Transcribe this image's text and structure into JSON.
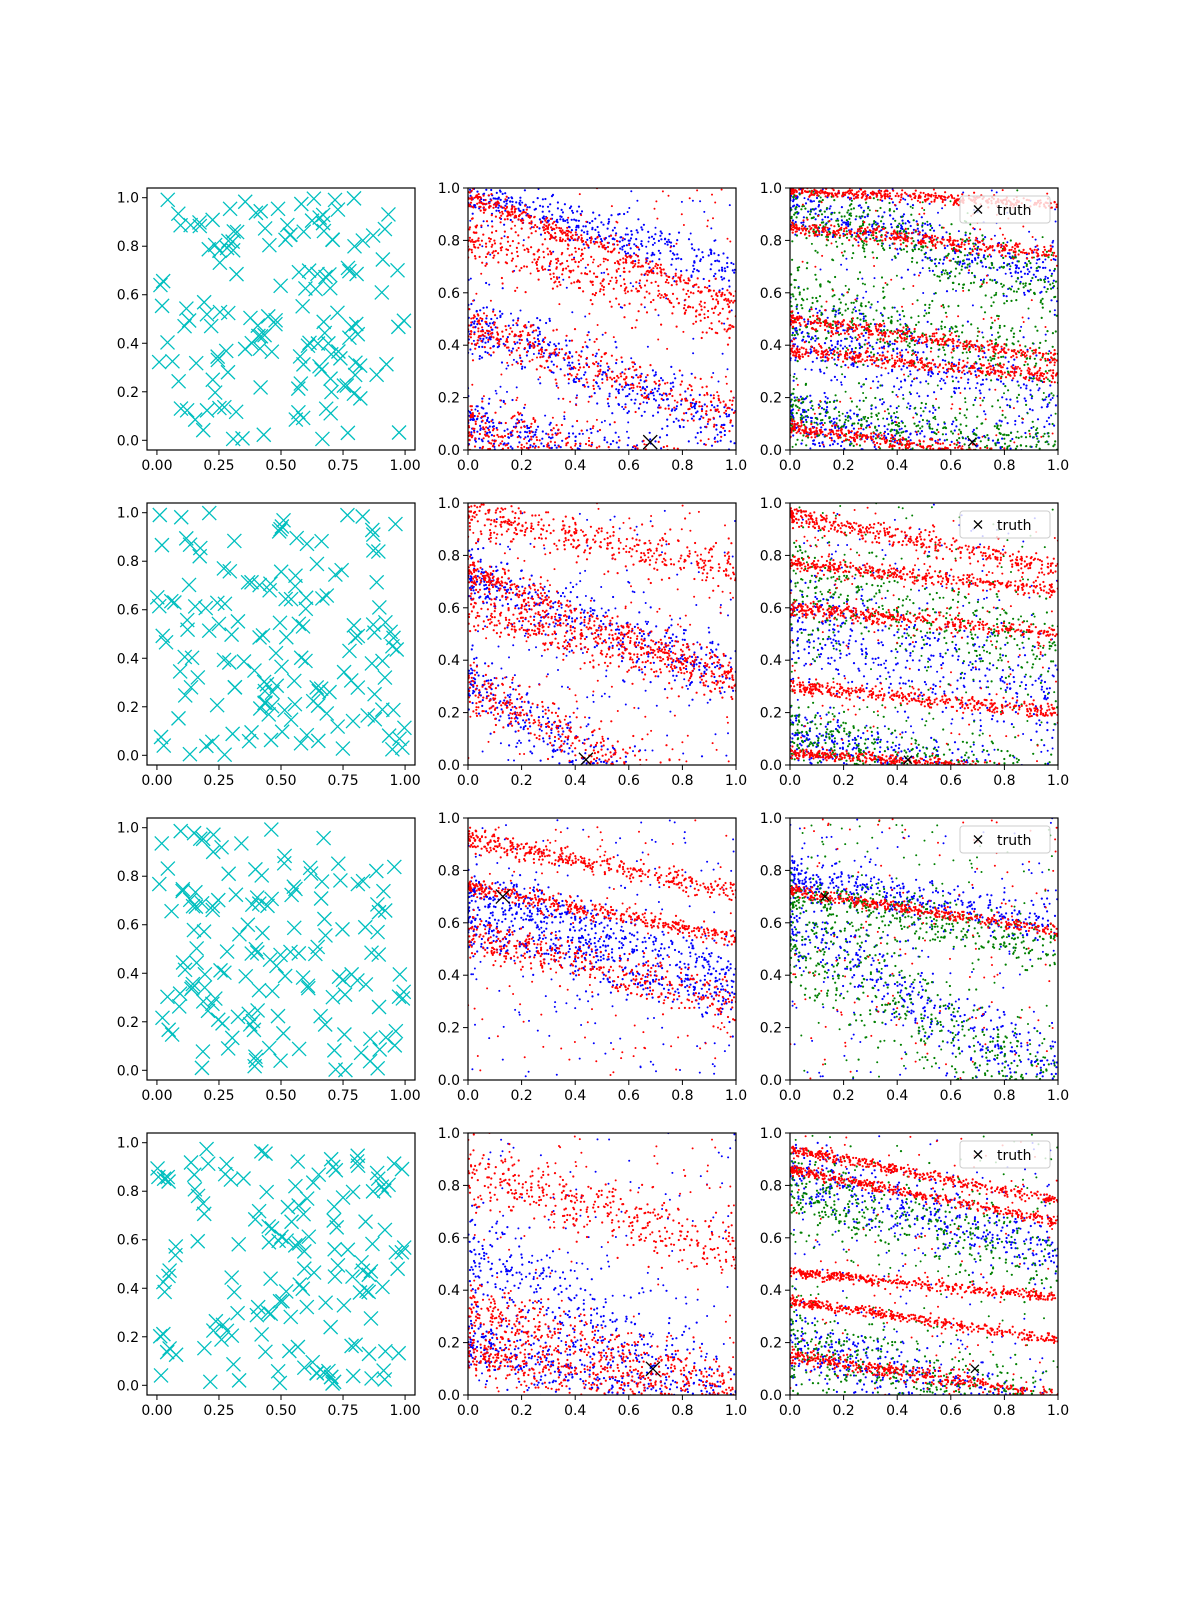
{
  "figure": {
    "legend_label": "truth",
    "colors": {
      "uniform_marker": "#00bfbf",
      "series_a": "#0000ff",
      "series_b": "#ff0000",
      "series_c": "#008000",
      "truth_marker": "#000000"
    }
  },
  "chart_data": [
    {
      "type": "scatter",
      "row": 1,
      "col": 1,
      "xlim": [
        -0.04,
        1.04
      ],
      "ylim": [
        -0.04,
        1.04
      ],
      "xticks": [
        "0.00",
        "0.25",
        "0.50",
        "0.75",
        "1.00"
      ],
      "yticks": [
        "0.0",
        "0.2",
        "0.4",
        "0.6",
        "0.8",
        "1.0"
      ],
      "series": [
        {
          "marker": "x",
          "color": "#00bfbf",
          "n_points": 150,
          "distribution": "uniform"
        }
      ]
    },
    {
      "type": "scatter",
      "row": 1,
      "col": 2,
      "xlim": [
        0,
        1
      ],
      "ylim": [
        0,
        1
      ],
      "xticks": [
        "0.0",
        "0.2",
        "0.4",
        "0.6",
        "0.8",
        "1.0"
      ],
      "yticks": [
        "0.0",
        "0.2",
        "0.4",
        "0.6",
        "0.8",
        "1.0"
      ],
      "truth": [
        0.68,
        0.03
      ],
      "series": [
        {
          "color": "#0000ff",
          "bands": [
            [
              0.1,
              -0.25,
              0.05
            ],
            [
              0.48,
              -0.4,
              0.06
            ],
            [
              0.98,
              -0.3,
              0.04
            ]
          ]
        },
        {
          "color": "#ff0000",
          "bands": [
            [
              0.08,
              -0.2,
              0.05
            ],
            [
              0.47,
              -0.35,
              0.05
            ],
            [
              0.97,
              -0.4,
              0.02
            ],
            [
              0.8,
              -0.3,
              0.05
            ]
          ]
        }
      ]
    },
    {
      "type": "scatter",
      "row": 1,
      "col": 3,
      "xlim": [
        0,
        1
      ],
      "ylim": [
        0,
        1
      ],
      "xticks": [
        "0.0",
        "0.2",
        "0.4",
        "0.6",
        "0.8",
        "1.0"
      ],
      "yticks": [
        "0.0",
        "0.2",
        "0.4",
        "0.6",
        "0.8",
        "1.0"
      ],
      "truth": [
        0.68,
        0.03
      ],
      "legend": true,
      "series": [
        {
          "color": "#0000ff",
          "bands": [
            [
              0.12,
              -0.2,
              0.06
            ],
            [
              0.45,
              -0.25,
              0.08
            ],
            [
              0.95,
              -0.3,
              0.06
            ]
          ]
        },
        {
          "color": "#008000",
          "bands": [
            [
              0.14,
              -0.15,
              0.06
            ],
            [
              0.55,
              -0.2,
              0.08
            ],
            [
              0.92,
              -0.3,
              0.06
            ]
          ]
        },
        {
          "color": "#ff0000",
          "bands": [
            [
              0.09,
              -0.15,
              0.015
            ],
            [
              0.38,
              -0.1,
              0.015
            ],
            [
              0.5,
              -0.15,
              0.015
            ],
            [
              0.85,
              -0.1,
              0.015
            ],
            [
              0.99,
              -0.05,
              0.01
            ]
          ]
        }
      ]
    },
    {
      "type": "scatter",
      "row": 2,
      "col": 1,
      "xlim": [
        -0.04,
        1.04
      ],
      "ylim": [
        -0.04,
        1.04
      ],
      "xticks": [
        "0.00",
        "0.25",
        "0.50",
        "0.75",
        "1.00"
      ],
      "yticks": [
        "0.0",
        "0.2",
        "0.4",
        "0.6",
        "0.8",
        "1.0"
      ],
      "series": [
        {
          "marker": "x",
          "color": "#00bfbf",
          "n_points": 150,
          "distribution": "uniform"
        }
      ]
    },
    {
      "type": "scatter",
      "row": 2,
      "col": 2,
      "xlim": [
        0,
        1
      ],
      "ylim": [
        0,
        1
      ],
      "xticks": [
        "0.0",
        "0.2",
        "0.4",
        "0.6",
        "0.8",
        "1.0"
      ],
      "yticks": [
        "0.0",
        "0.2",
        "0.4",
        "0.6",
        "0.8",
        "1.0"
      ],
      "truth": [
        0.44,
        0.02
      ],
      "series": [
        {
          "color": "#0000ff",
          "bands": [
            [
              0.3,
              -0.6,
              0.06
            ],
            [
              0.72,
              -0.4,
              0.06
            ]
          ]
        },
        {
          "color": "#ff0000",
          "bands": [
            [
              0.3,
              -0.5,
              0.05
            ],
            [
              0.74,
              -0.4,
              0.03
            ],
            [
              0.6,
              -0.3,
              0.04
            ],
            [
              0.95,
              -0.2,
              0.04
            ]
          ]
        }
      ]
    },
    {
      "type": "scatter",
      "row": 2,
      "col": 3,
      "xlim": [
        0,
        1
      ],
      "ylim": [
        0,
        1
      ],
      "xticks": [
        "0.0",
        "0.2",
        "0.4",
        "0.6",
        "0.8",
        "1.0"
      ],
      "yticks": [
        "0.0",
        "0.2",
        "0.4",
        "0.6",
        "0.8",
        "1.0"
      ],
      "truth": [
        0.44,
        0.02
      ],
      "legend": true,
      "series": [
        {
          "color": "#0000ff",
          "bands": [
            [
              0.1,
              -0.2,
              0.05
            ],
            [
              0.55,
              -0.3,
              0.1
            ]
          ]
        },
        {
          "color": "#008000",
          "bands": [
            [
              0.12,
              -0.2,
              0.06
            ],
            [
              0.7,
              -0.3,
              0.1
            ]
          ]
        },
        {
          "color": "#ff0000",
          "bands": [
            [
              0.05,
              -0.08,
              0.01
            ],
            [
              0.3,
              -0.1,
              0.015
            ],
            [
              0.6,
              -0.1,
              0.015
            ],
            [
              0.77,
              -0.1,
              0.015
            ],
            [
              0.95,
              -0.2,
              0.02
            ]
          ]
        }
      ]
    },
    {
      "type": "scatter",
      "row": 3,
      "col": 1,
      "xlim": [
        -0.04,
        1.04
      ],
      "ylim": [
        -0.04,
        1.04
      ],
      "xticks": [
        "0.00",
        "0.25",
        "0.50",
        "0.75",
        "1.00"
      ],
      "yticks": [
        "0.0",
        "0.2",
        "0.4",
        "0.6",
        "0.8",
        "1.0"
      ],
      "series": [
        {
          "marker": "x",
          "color": "#00bfbf",
          "n_points": 150,
          "distribution": "uniform"
        }
      ]
    },
    {
      "type": "scatter",
      "row": 3,
      "col": 2,
      "xlim": [
        0,
        1
      ],
      "ylim": [
        0,
        1
      ],
      "xticks": [
        "0.0",
        "0.2",
        "0.4",
        "0.6",
        "0.8",
        "1.0"
      ],
      "yticks": [
        "0.0",
        "0.2",
        "0.4",
        "0.6",
        "0.8",
        "1.0"
      ],
      "truth": [
        0.13,
        0.7
      ],
      "series": [
        {
          "color": "#0000ff",
          "bands": [
            [
              0.72,
              -0.3,
              0.05
            ],
            [
              0.6,
              -0.3,
              0.06
            ]
          ]
        },
        {
          "color": "#ff0000",
          "bands": [
            [
              0.74,
              -0.2,
              0.015
            ],
            [
              0.92,
              -0.2,
              0.02
            ],
            [
              0.55,
              -0.25,
              0.04
            ]
          ]
        }
      ]
    },
    {
      "type": "scatter",
      "row": 3,
      "col": 3,
      "xlim": [
        0,
        1
      ],
      "ylim": [
        0,
        1
      ],
      "xticks": [
        "0.0",
        "0.2",
        "0.4",
        "0.6",
        "0.8",
        "1.0"
      ],
      "yticks": [
        "0.0",
        "0.2",
        "0.4",
        "0.6",
        "0.8",
        "1.0"
      ],
      "truth": [
        0.13,
        0.7
      ],
      "legend": true,
      "series": [
        {
          "color": "#0000ff",
          "bands": [
            [
              0.78,
              -0.2,
              0.04
            ],
            [
              0.6,
              -0.6,
              0.08
            ]
          ]
        },
        {
          "color": "#008000",
          "bands": [
            [
              0.7,
              -0.2,
              0.05
            ],
            [
              0.5,
              -0.5,
              0.1
            ]
          ]
        },
        {
          "color": "#ff0000",
          "bands": [
            [
              0.72,
              -0.15,
              0.01
            ]
          ]
        }
      ]
    },
    {
      "type": "scatter",
      "row": 4,
      "col": 1,
      "xlim": [
        -0.04,
        1.04
      ],
      "ylim": [
        -0.04,
        1.04
      ],
      "xticks": [
        "0.00",
        "0.25",
        "0.50",
        "0.75",
        "1.00"
      ],
      "yticks": [
        "0.0",
        "0.2",
        "0.4",
        "0.6",
        "0.8",
        "1.0"
      ],
      "series": [
        {
          "marker": "x",
          "color": "#00bfbf",
          "n_points": 150,
          "distribution": "uniform"
        }
      ]
    },
    {
      "type": "scatter",
      "row": 4,
      "col": 2,
      "xlim": [
        0,
        1
      ],
      "ylim": [
        0,
        1
      ],
      "xticks": [
        "0.0",
        "0.2",
        "0.4",
        "0.6",
        "0.8",
        "1.0"
      ],
      "yticks": [
        "0.0",
        "0.2",
        "0.4",
        "0.6",
        "0.8",
        "1.0"
      ],
      "truth": [
        0.69,
        0.1
      ],
      "series": [
        {
          "color": "#0000ff",
          "bands": [
            [
              0.2,
              -0.3,
              0.06
            ],
            [
              0.55,
              -0.6,
              0.1
            ]
          ]
        },
        {
          "color": "#ff0000",
          "bands": [
            [
              0.16,
              -0.2,
              0.04
            ],
            [
              0.33,
              -0.3,
              0.05
            ],
            [
              0.85,
              -0.3,
              0.06
            ]
          ]
        }
      ]
    },
    {
      "type": "scatter",
      "row": 4,
      "col": 3,
      "xlim": [
        0,
        1
      ],
      "ylim": [
        0,
        1
      ],
      "xticks": [
        "0.0",
        "0.2",
        "0.4",
        "0.6",
        "0.8",
        "1.0"
      ],
      "yticks": [
        "0.0",
        "0.2",
        "0.4",
        "0.6",
        "0.8",
        "1.0"
      ],
      "truth": [
        0.69,
        0.1
      ],
      "legend": true,
      "series": [
        {
          "color": "#0000ff",
          "bands": [
            [
              0.85,
              -0.3,
              0.06
            ],
            [
              0.2,
              -0.3,
              0.06
            ]
          ]
        },
        {
          "color": "#008000",
          "bands": [
            [
              0.8,
              -0.3,
              0.08
            ],
            [
              0.2,
              -0.3,
              0.08
            ]
          ]
        },
        {
          "color": "#ff0000",
          "bands": [
            [
              0.94,
              -0.2,
              0.01
            ],
            [
              0.36,
              -0.15,
              0.01
            ],
            [
              0.47,
              -0.1,
              0.01
            ],
            [
              0.15,
              -0.15,
              0.015
            ],
            [
              0.86,
              -0.2,
              0.01
            ]
          ]
        }
      ]
    }
  ]
}
